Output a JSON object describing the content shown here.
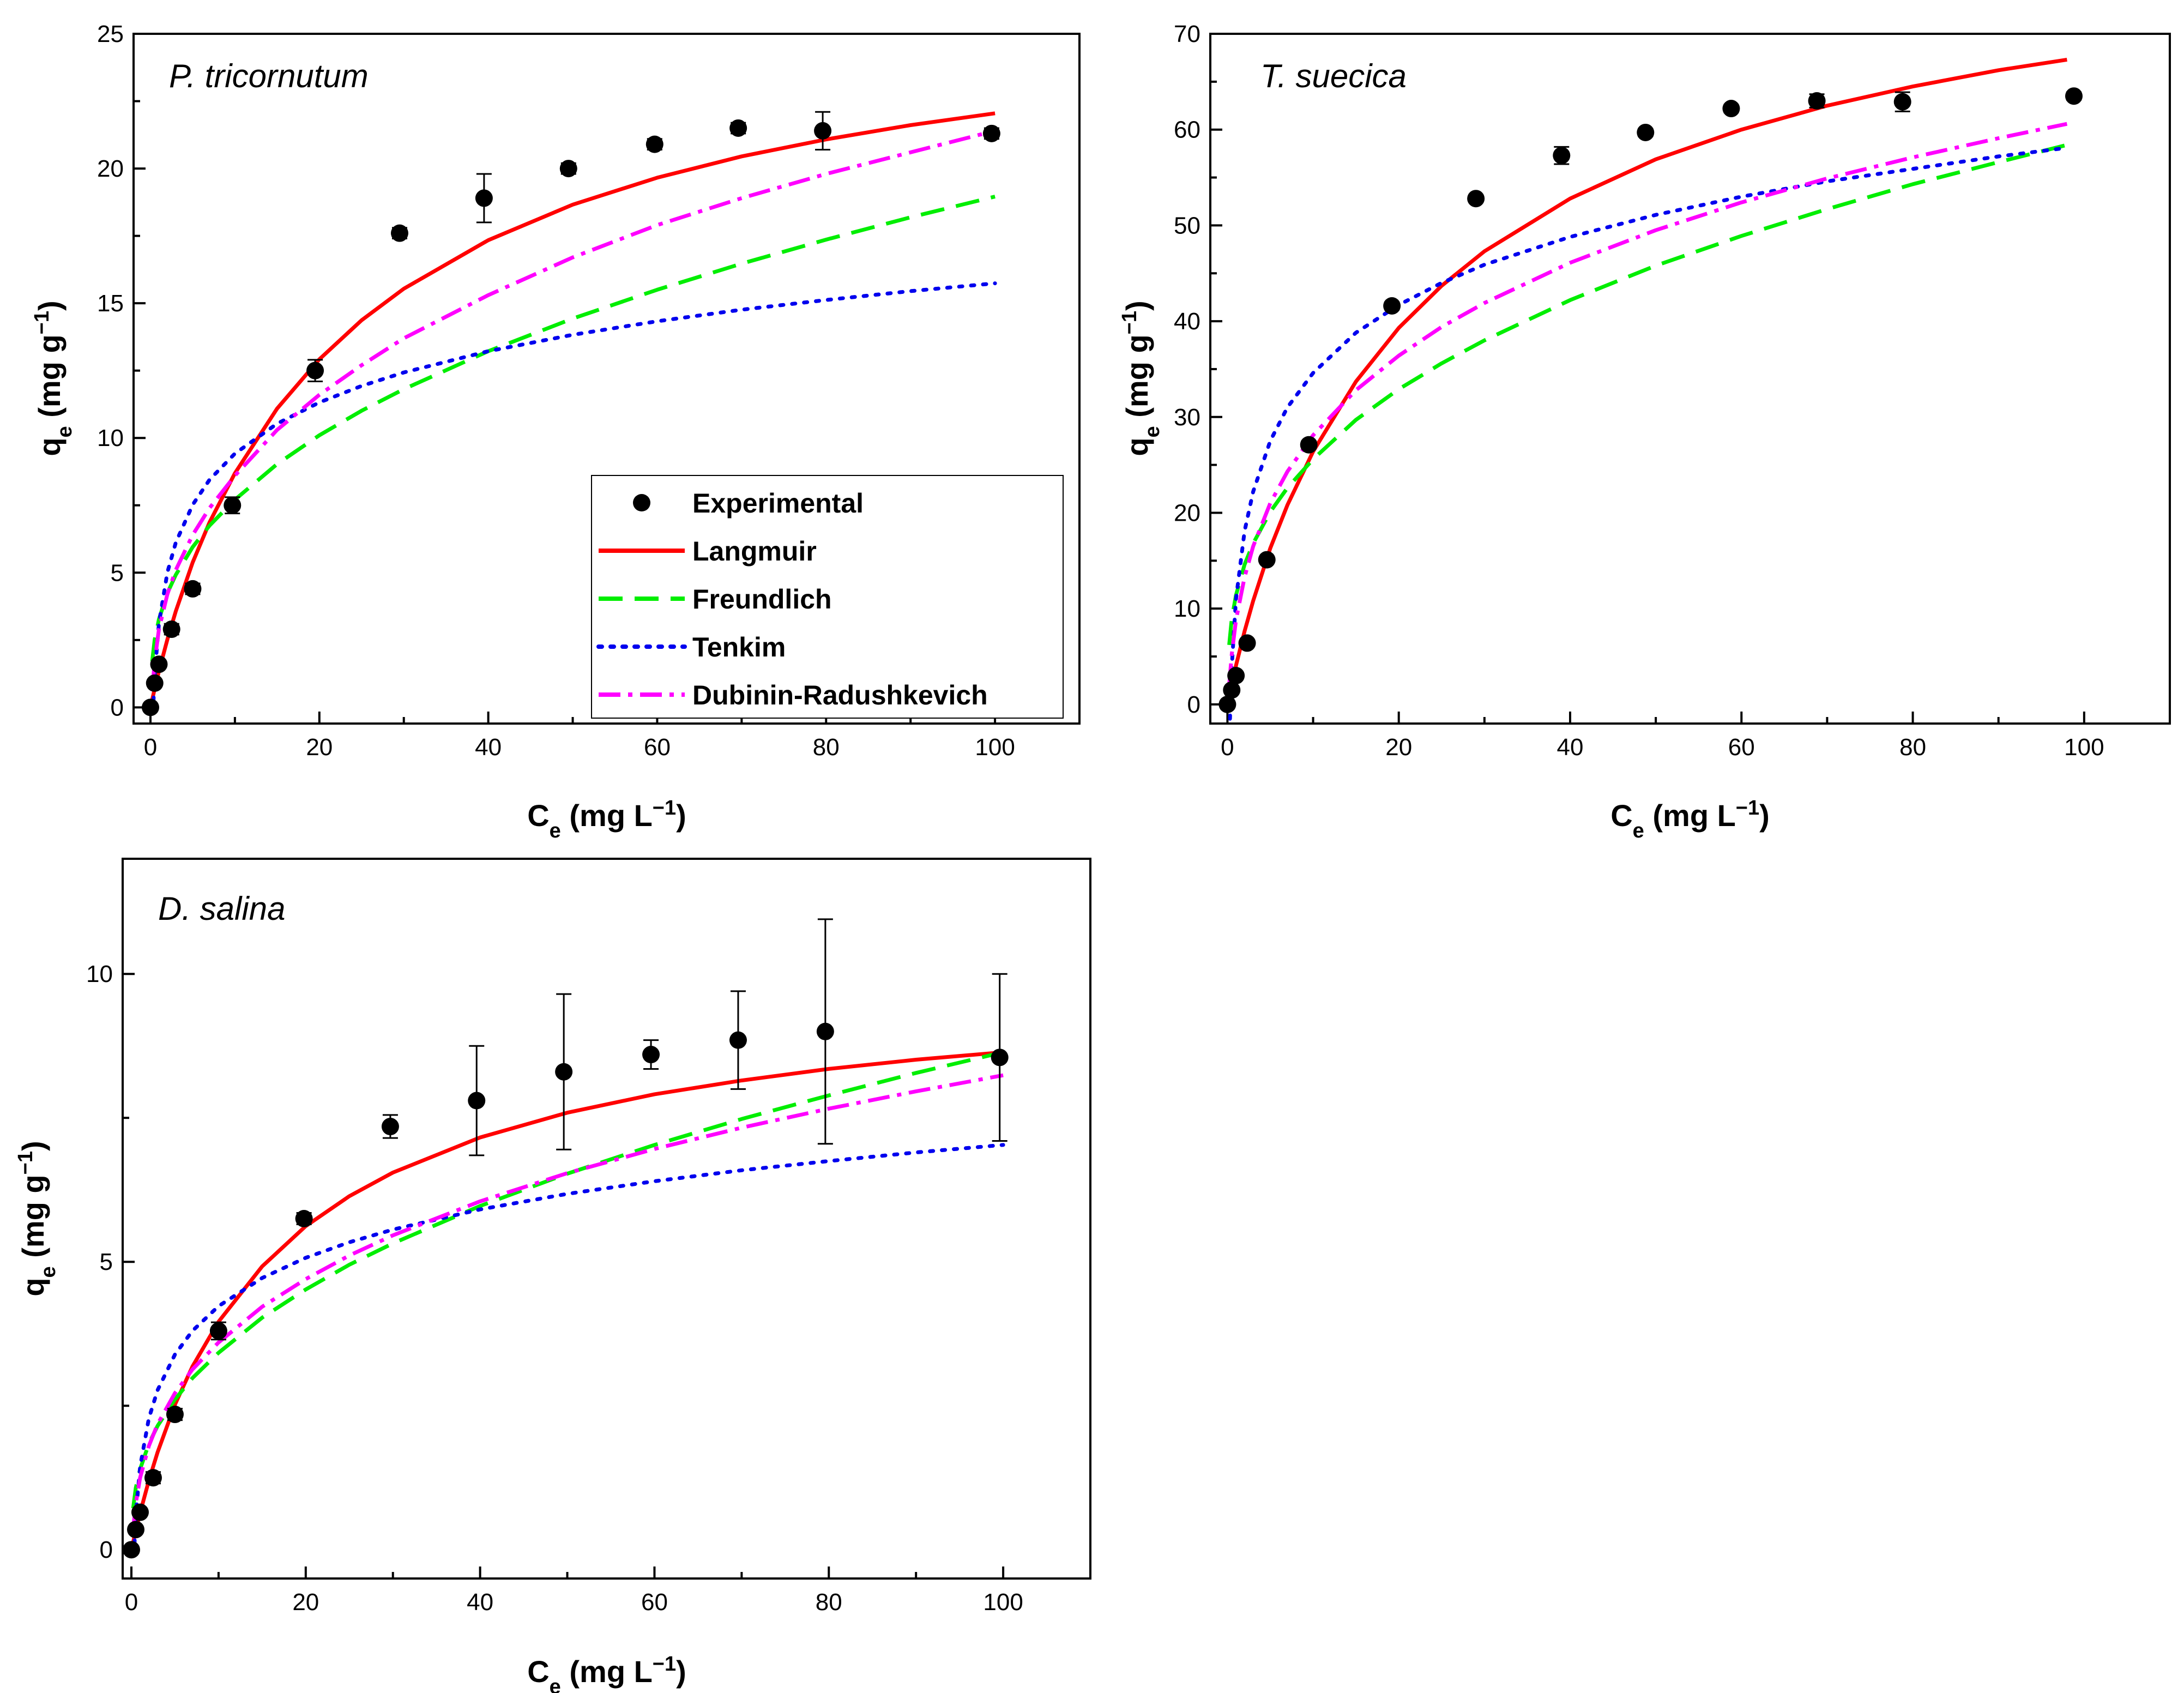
{
  "chart_data": [
    {
      "type": "scatter",
      "title": "P. tricornutum",
      "xlabel": {
        "main": "C",
        "sub": "e",
        "unit": " (mg L",
        "sup": "−1",
        "close": ")"
      },
      "ylabel": {
        "main": "q",
        "sub": "e",
        "unit": " (mg g",
        "sup": "−1",
        "close": ")"
      },
      "xlim": [
        -2,
        110
      ],
      "ylim": [
        -0.6,
        25
      ],
      "xticks": [
        0,
        20,
        40,
        60,
        80,
        100
      ],
      "yticks": [
        0,
        5,
        10,
        15,
        20,
        25
      ],
      "legend": [
        "Experimental",
        "Langmuir",
        "Freundlich",
        "Tenkim",
        "Dubinin-Radushkevich"
      ],
      "experimental": {
        "x": [
          0,
          0.5,
          1,
          2.5,
          5,
          9.7,
          19.5,
          29.5,
          39.5,
          49.5,
          59.7,
          69.6,
          79.6,
          99.6
        ],
        "y": [
          0,
          0.9,
          1.6,
          2.9,
          4.4,
          7.5,
          12.5,
          17.6,
          18.9,
          20.0,
          20.9,
          21.5,
          21.4,
          21.3
        ],
        "err": [
          0.1,
          0.1,
          0.1,
          0.2,
          0.2,
          0.3,
          0.4,
          0.2,
          0.9,
          0.2,
          0.2,
          0.2,
          0.7,
          0.2
        ]
      },
      "series": [
        {
          "name": "Langmuir",
          "color": "#ff0000",
          "x": [
            0.2,
            0.5,
            1,
            2,
            3,
            5,
            7,
            10,
            15,
            20,
            25,
            30,
            40,
            50,
            60,
            70,
            80,
            90,
            100
          ],
          "y": [
            0.28,
            0.69,
            1.34,
            2.52,
            3.57,
            5.38,
            6.87,
            8.69,
            11.09,
            12.92,
            14.37,
            15.54,
            17.34,
            18.66,
            19.66,
            20.45,
            21.08,
            21.61,
            22.05
          ]
        },
        {
          "name": "Freundlich",
          "color": "#00ee00",
          "x": [
            0.2,
            0.5,
            1,
            2,
            3,
            5,
            7,
            10,
            15,
            20,
            25,
            30,
            40,
            50,
            60,
            70,
            80,
            90,
            100
          ],
          "y": [
            1.71,
            2.51,
            3.27,
            4.24,
            4.92,
            5.95,
            6.75,
            7.71,
            9.03,
            10.1,
            11.01,
            11.81,
            13.22,
            14.43,
            15.5,
            16.47,
            17.36,
            18.19,
            18.96
          ]
        },
        {
          "name": "Tenkim",
          "color": "#0000ee",
          "x": [
            0.3,
            0.5,
            1,
            2,
            3,
            5,
            7,
            10,
            15,
            20,
            25,
            30,
            40,
            50,
            60,
            70,
            80,
            90,
            100
          ],
          "y": [
            -0.2,
            1.21,
            3.11,
            5.01,
            6.12,
            7.52,
            8.45,
            9.42,
            10.53,
            11.32,
            11.93,
            12.43,
            13.22,
            13.83,
            14.33,
            14.76,
            15.12,
            15.45,
            15.74
          ]
        },
        {
          "name": "Dubinin-Radushkevich",
          "color": "#ff00ff",
          "x": [
            0.2,
            0.5,
            1,
            2,
            3,
            5,
            7,
            10,
            15,
            20,
            25,
            30,
            40,
            50,
            60,
            70,
            80,
            90,
            100
          ],
          "y": [
            0.6,
            1.7,
            2.9,
            4.2,
            5.1,
            6.4,
            7.4,
            8.6,
            10.3,
            11.6,
            12.7,
            13.7,
            15.3,
            16.7,
            17.9,
            18.9,
            19.8,
            20.6,
            21.4
          ]
        }
      ]
    },
    {
      "type": "scatter",
      "title": "T. suecica",
      "xlabel": {
        "main": "C",
        "sub": "e",
        "unit": " (mg L",
        "sup": "−1",
        "close": ")"
      },
      "ylabel": {
        "main": "q",
        "sub": "e",
        "unit": " (mg g",
        "sup": "−1",
        "close": ")"
      },
      "xlim": [
        -2,
        110
      ],
      "ylim": [
        -2,
        70
      ],
      "xticks": [
        0,
        20,
        40,
        60,
        80,
        100
      ],
      "yticks": [
        0,
        10,
        20,
        30,
        40,
        50,
        60,
        70
      ],
      "experimental": {
        "x": [
          0,
          0.5,
          1,
          2.3,
          4.6,
          9.5,
          19.2,
          29,
          39,
          48.8,
          58.8,
          68.8,
          78.8,
          98.8
        ],
        "y": [
          0,
          1.5,
          3,
          6.4,
          15.1,
          27.1,
          41.6,
          52.8,
          57.3,
          59.7,
          62.2,
          63.0,
          62.9,
          63.5
        ],
        "err": [
          0.2,
          0.2,
          0.2,
          0.3,
          0.3,
          0.4,
          0.4,
          0.3,
          0.9,
          0.4,
          0.4,
          0.7,
          1.0,
          0.4
        ]
      },
      "series": [
        {
          "name": "Langmuir",
          "color": "#ff0000",
          "x": [
            0.2,
            0.5,
            1,
            2,
            3,
            5,
            7,
            10,
            15,
            20,
            25,
            30,
            40,
            50,
            60,
            70,
            80,
            90,
            98
          ],
          "y": [
            0.85,
            2.09,
            4.05,
            7.64,
            10.8,
            16.3,
            20.8,
            26.4,
            33.7,
            39.3,
            43.7,
            47.3,
            52.8,
            56.9,
            60.0,
            62.5,
            64.5,
            66.2,
            67.3
          ]
        },
        {
          "name": "Freundlich",
          "color": "#00ee00",
          "x": [
            0.2,
            0.5,
            1,
            2,
            3,
            5,
            7,
            10,
            15,
            20,
            25,
            30,
            40,
            50,
            60,
            70,
            80,
            90,
            98
          ],
          "y": [
            6.2,
            8.9,
            11.4,
            14.6,
            16.8,
            20.1,
            22.6,
            25.6,
            29.7,
            32.9,
            35.6,
            38.0,
            42.2,
            45.8,
            48.9,
            51.7,
            54.3,
            56.6,
            58.4
          ]
        },
        {
          "name": "Tenkim",
          "color": "#0000ee",
          "x": [
            0.3,
            0.5,
            1,
            2,
            3,
            5,
            7,
            10,
            15,
            20,
            25,
            30,
            40,
            50,
            60,
            70,
            80,
            90,
            98
          ],
          "y": [
            -1.5,
            3.9,
            11.0,
            18.1,
            22.2,
            27.5,
            31.0,
            34.6,
            38.8,
            41.7,
            44.0,
            45.9,
            48.8,
            51.1,
            53.0,
            54.6,
            55.9,
            57.2,
            58.1
          ]
        },
        {
          "name": "Dubinin-Radushkevich",
          "color": "#ff00ff",
          "x": [
            0.2,
            0.5,
            1,
            2,
            3,
            5,
            7,
            10,
            15,
            20,
            25,
            30,
            40,
            50,
            60,
            70,
            80,
            90,
            98
          ],
          "y": [
            2.0,
            5.2,
            8.8,
            13.3,
            16.5,
            21.0,
            24.3,
            28.1,
            32.8,
            36.4,
            39.4,
            41.9,
            46.1,
            49.5,
            52.4,
            54.9,
            57.1,
            59.1,
            60.6
          ]
        }
      ]
    },
    {
      "type": "scatter",
      "title": "D. salina",
      "xlabel": {
        "main": "C",
        "sub": "e",
        "unit": " (mg L",
        "sup": "−1",
        "close": ")"
      },
      "ylabel": {
        "main": "q",
        "sub": "e",
        "unit": " (mg g",
        "sup": "−1",
        "close": ")"
      },
      "xlim": [
        -1,
        110
      ],
      "ylim": [
        -0.5,
        12
      ],
      "xticks": [
        0,
        20,
        40,
        60,
        80,
        100
      ],
      "yticks": [
        0,
        5,
        10
      ],
      "experimental": {
        "x": [
          0,
          0.5,
          1,
          2.5,
          5,
          10,
          19.8,
          29.7,
          39.6,
          49.6,
          59.6,
          69.6,
          79.6,
          99.6
        ],
        "y": [
          0,
          0.35,
          0.65,
          1.25,
          2.35,
          3.8,
          5.75,
          7.35,
          7.8,
          8.3,
          8.6,
          8.85,
          9.0,
          8.55
        ],
        "err": [
          0.05,
          0.05,
          0.05,
          0.1,
          0.1,
          0.15,
          0.1,
          0.2,
          0.95,
          1.35,
          0.25,
          0.85,
          1.95,
          1.45
        ]
      },
      "series": [
        {
          "name": "Langmuir",
          "color": "#ff0000",
          "x": [
            0.2,
            0.5,
            1,
            2,
            3,
            5,
            7,
            10,
            15,
            20,
            25,
            30,
            40,
            50,
            60,
            70,
            80,
            90,
            100
          ],
          "y": [
            0.13,
            0.33,
            0.64,
            1.2,
            1.69,
            2.52,
            3.18,
            3.96,
            4.92,
            5.62,
            6.14,
            6.55,
            7.16,
            7.59,
            7.91,
            8.15,
            8.35,
            8.51,
            8.64
          ]
        },
        {
          "name": "Freundlich",
          "color": "#00ee00",
          "x": [
            0.2,
            0.5,
            1,
            2,
            3,
            5,
            7,
            10,
            15,
            20,
            25,
            30,
            40,
            50,
            60,
            70,
            80,
            90,
            100
          ],
          "y": [
            0.72,
            1.07,
            1.4,
            1.84,
            2.15,
            2.61,
            2.98,
            3.42,
            4.03,
            4.52,
            4.95,
            5.32,
            5.97,
            6.53,
            7.03,
            7.48,
            7.89,
            8.28,
            8.64
          ]
        },
        {
          "name": "Tenkim",
          "color": "#0000ee",
          "x": [
            0.3,
            0.5,
            1,
            2,
            3,
            5,
            7,
            10,
            15,
            20,
            25,
            30,
            40,
            50,
            60,
            70,
            80,
            90,
            100
          ],
          "y": [
            -0.1,
            0.6,
            1.44,
            2.28,
            2.77,
            3.39,
            3.8,
            4.23,
            4.72,
            5.07,
            5.34,
            5.56,
            5.91,
            6.18,
            6.4,
            6.59,
            6.75,
            6.9,
            7.03
          ]
        },
        {
          "name": "Dubinin-Radushkevich",
          "color": "#ff00ff",
          "x": [
            0.2,
            0.5,
            1,
            2,
            3,
            5,
            7,
            10,
            15,
            20,
            25,
            30,
            40,
            50,
            60,
            70,
            80,
            90,
            100
          ],
          "y": [
            0.35,
            0.8,
            1.25,
            1.8,
            2.18,
            2.72,
            3.13,
            3.6,
            4.22,
            4.7,
            5.11,
            5.46,
            6.05,
            6.54,
            6.96,
            7.33,
            7.66,
            7.96,
            8.24
          ]
        }
      ]
    }
  ]
}
